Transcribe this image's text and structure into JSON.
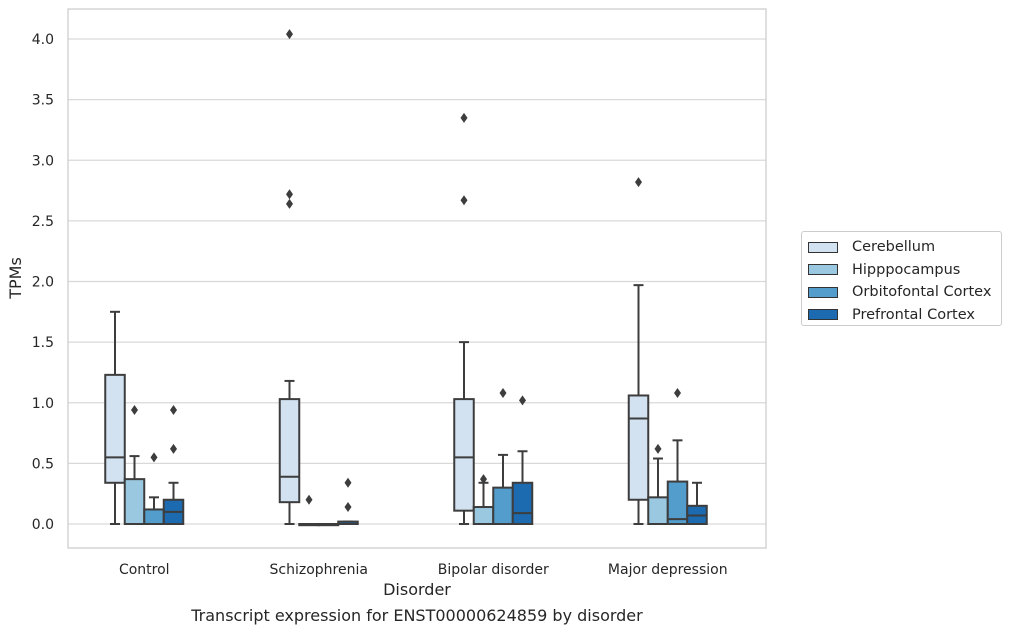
{
  "chart_data": {
    "type": "box",
    "title": "",
    "caption": "Transcript expression for ENST00000624859 by disorder",
    "xlabel": "Disorder",
    "ylabel": "TPMs",
    "ylim": [
      -0.19,
      4.25
    ],
    "yticks": [
      "0.0",
      "0.5",
      "1.0",
      "1.5",
      "2.0",
      "2.5",
      "3.0",
      "3.5",
      "4.0"
    ],
    "grid": "horizontal",
    "legend_placement": "right",
    "categories": [
      "Control",
      "Schizophrenia",
      "Bipolar disorder",
      "Major depression"
    ],
    "series": [
      {
        "name": "Cerebellum",
        "color": "#d2e2f1",
        "boxes": [
          {
            "whisker_low": 0.0,
            "q1": 0.34,
            "median": 0.55,
            "q3": 1.23,
            "whisker_high": 1.75,
            "outliers": []
          },
          {
            "whisker_low": 0.0,
            "q1": 0.18,
            "median": 0.39,
            "q3": 1.03,
            "whisker_high": 1.18,
            "outliers": [
              2.64,
              2.72,
              4.04
            ]
          },
          {
            "whisker_low": 0.0,
            "q1": 0.11,
            "median": 0.55,
            "q3": 1.03,
            "whisker_high": 1.5,
            "outliers": [
              2.67,
              3.35
            ]
          },
          {
            "whisker_low": 0.0,
            "q1": 0.2,
            "median": 0.87,
            "q3": 1.06,
            "whisker_high": 1.97,
            "outliers": [
              2.82
            ]
          }
        ]
      },
      {
        "name": "Hipppocampus",
        "color": "#9ac8e0",
        "boxes": [
          {
            "whisker_low": 0.0,
            "q1": 0.0,
            "median": 0.0,
            "q3": 0.37,
            "whisker_high": 0.56,
            "outliers": [
              0.94
            ]
          },
          {
            "whisker_low": 0.0,
            "q1": 0.0,
            "median": 0.0,
            "q3": 0.0,
            "whisker_high": 0.0,
            "outliers": [
              0.2
            ]
          },
          {
            "whisker_low": 0.0,
            "q1": 0.0,
            "median": 0.0,
            "q3": 0.14,
            "whisker_high": 0.34,
            "outliers": [
              0.37
            ]
          },
          {
            "whisker_low": 0.0,
            "q1": 0.0,
            "median": 0.0,
            "q3": 0.22,
            "whisker_high": 0.54,
            "outliers": [
              0.62
            ]
          }
        ]
      },
      {
        "name": "Orbitofontal Cortex",
        "color": "#529dcc",
        "boxes": [
          {
            "whisker_low": 0.0,
            "q1": 0.0,
            "median": 0.0,
            "q3": 0.12,
            "whisker_high": 0.22,
            "outliers": [
              0.55
            ]
          },
          {
            "whisker_low": 0.0,
            "q1": 0.0,
            "median": 0.0,
            "q3": 0.0,
            "whisker_high": 0.0,
            "outliers": []
          },
          {
            "whisker_low": 0.0,
            "q1": 0.0,
            "median": 0.0,
            "q3": 0.3,
            "whisker_high": 0.57,
            "outliers": [
              1.08
            ]
          },
          {
            "whisker_low": 0.0,
            "q1": 0.0,
            "median": 0.04,
            "q3": 0.35,
            "whisker_high": 0.69,
            "outliers": [
              1.08
            ]
          }
        ]
      },
      {
        "name": "Prefrontal Cortex",
        "color": "#1c6aaf",
        "boxes": [
          {
            "whisker_low": 0.0,
            "q1": 0.0,
            "median": 0.1,
            "q3": 0.2,
            "whisker_high": 0.34,
            "outliers": [
              0.62,
              0.94
            ]
          },
          {
            "whisker_low": 0.0,
            "q1": 0.0,
            "median": 0.0,
            "q3": 0.02,
            "whisker_high": 0.02,
            "outliers": [
              0.14,
              0.34
            ]
          },
          {
            "whisker_low": 0.0,
            "q1": 0.0,
            "median": 0.09,
            "q3": 0.34,
            "whisker_high": 0.6,
            "outliers": [
              1.02
            ]
          },
          {
            "whisker_low": 0.0,
            "q1": 0.0,
            "median": 0.07,
            "q3": 0.15,
            "whisker_high": 0.34,
            "outliers": []
          }
        ]
      }
    ]
  }
}
